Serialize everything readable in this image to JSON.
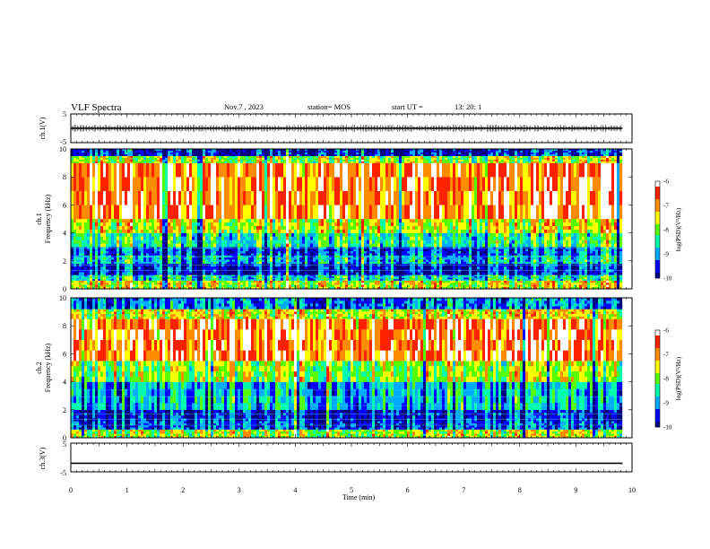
{
  "header": {
    "title": "VLF Spectra",
    "date": "Nov.7 , 2023",
    "station": "station= MOS",
    "start": "start UT =",
    "start_time": "13: 20: 1"
  },
  "chart_data": [
    {
      "type": "line",
      "id": "ch1-waveform",
      "ylabel": "ch.1(V)",
      "ylim": [
        -5,
        5
      ],
      "yticks": [
        "5",
        "-5"
      ],
      "x": [
        0,
        9.83
      ],
      "y": [
        0,
        0
      ],
      "style": "noisy trace with dense spikes"
    },
    {
      "type": "heatmap",
      "id": "ch1-spectrogram",
      "ylabel_top": "ch.1",
      "ylabel": "Frequency (kHz)",
      "ylim": [
        0,
        10
      ],
      "yticks": [
        "0",
        "2",
        "4",
        "6",
        "8",
        "10"
      ],
      "xlim": [
        0,
        10
      ],
      "data_end_min": 9.83,
      "colorbar": {
        "label": "log(PSD)(V²/Hz)",
        "ticks": [
          "-6",
          "-7",
          "-8",
          "-9",
          "-10"
        ],
        "range": [
          -10,
          -6
        ]
      },
      "band_levels": [
        {
          "f_low": 0,
          "f_high": 0.6,
          "log_psd": -7.6
        },
        {
          "f_low": 0.6,
          "f_high": 1.0,
          "log_psd": -8.6
        },
        {
          "f_low": 1.0,
          "f_high": 1.8,
          "log_psd": -9.6
        },
        {
          "f_low": 1.8,
          "f_high": 2.4,
          "log_psd": -8.8
        },
        {
          "f_low": 2.4,
          "f_high": 3.0,
          "log_psd": -9.3
        },
        {
          "f_low": 3.0,
          "f_high": 4.0,
          "log_psd": -8.4
        },
        {
          "f_low": 4.0,
          "f_high": 5.0,
          "log_psd": -7.6
        },
        {
          "f_low": 5.0,
          "f_high": 9.0,
          "log_psd": -6.7
        },
        {
          "f_low": 9.0,
          "f_high": 9.5,
          "log_psd": -7.8
        },
        {
          "f_low": 9.5,
          "f_high": 10.0,
          "log_psd": -9.6
        }
      ]
    },
    {
      "type": "heatmap",
      "id": "ch2-spectrogram",
      "ylabel_top": "ch.2",
      "ylabel": "Frequency (kHz)",
      "ylim": [
        0,
        10
      ],
      "yticks": [
        "0",
        "2",
        "4",
        "6",
        "8",
        "10"
      ],
      "xlim": [
        0,
        10
      ],
      "data_end_min": 9.83,
      "colorbar": {
        "label": "log(PSD)(V²/Hz)",
        "ticks": [
          "-6",
          "-7",
          "-8",
          "-9",
          "-10"
        ],
        "range": [
          -10,
          -6
        ]
      },
      "band_levels": [
        {
          "f_low": 0,
          "f_high": 0.6,
          "log_psd": -7.8
        },
        {
          "f_low": 0.6,
          "f_high": 1.2,
          "log_psd": -9.4
        },
        {
          "f_low": 1.2,
          "f_high": 2.0,
          "log_psd": -9.6
        },
        {
          "f_low": 2.0,
          "f_high": 4.0,
          "log_psd": -8.9
        },
        {
          "f_low": 4.0,
          "f_high": 5.5,
          "log_psd": -7.9
        },
        {
          "f_low": 5.5,
          "f_high": 8.5,
          "log_psd": -6.7
        },
        {
          "f_low": 8.5,
          "f_high": 9.2,
          "log_psd": -7.6
        },
        {
          "f_low": 9.2,
          "f_high": 10.0,
          "log_psd": -9.2
        }
      ]
    },
    {
      "type": "line",
      "id": "ch3-waveform",
      "ylabel": "ch.3(V)",
      "ylim": [
        -5,
        5
      ],
      "yticks": [
        "5",
        "-5"
      ],
      "x": [
        0,
        9.83
      ],
      "y": [
        -2,
        -2
      ]
    }
  ],
  "xaxis": {
    "label": "Time (min)",
    "ticks": [
      "0",
      "1",
      "2",
      "3",
      "4",
      "5",
      "6",
      "7",
      "8",
      "9",
      "10"
    ],
    "range": [
      0,
      10
    ]
  },
  "colors": {
    "colormap": [
      "#00007f",
      "#0000ff",
      "#00aaff",
      "#00ffaa",
      "#55ff00",
      "#ffff00",
      "#ff8c00",
      "#ff2200",
      "#ffffff"
    ]
  }
}
